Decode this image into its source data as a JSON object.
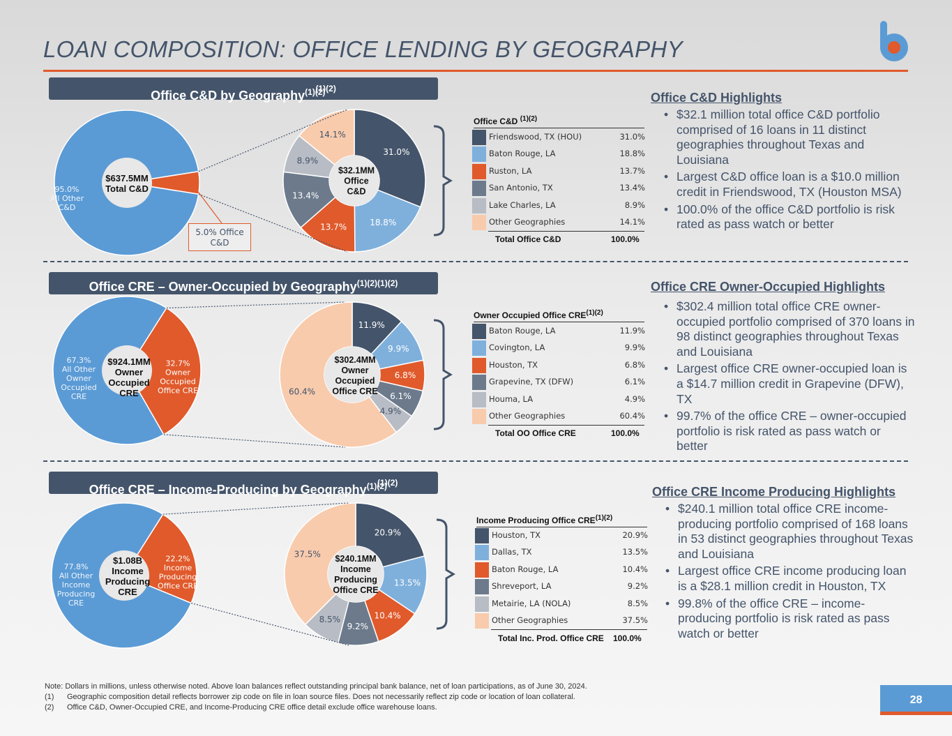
{
  "title": "LOAN COMPOSITION: OFFICE LENDING BY GEOGRAPHY",
  "page_number": "28",
  "colors": {
    "navy": "#44546a",
    "blue": "#5b9bd5",
    "orange": "#e05a2b",
    "slate": "#6c7a8c",
    "grey": "#b8bcc4",
    "peach": "#f8cbad",
    "lightblue": "#7fb0dc"
  },
  "notes": [
    "Note: Dollars in millions, unless otherwise noted. Above loan balances reflect outstanding principal bank balance, net of loan participations, as of June 30, 2024.",
    "(1)",
    "Geographic composition detail reflects borrower zip code on file in loan source files. Does not necessarily reflect zip code or location of loan collateral.",
    "(2)",
    "Office C&D, Owner-Occupied CRE, and Income-Producing CRE office detail exclude office warehouse loans."
  ],
  "sections": [
    {
      "banner": "Office C&D by Geography",
      "banner_sup": "(1)(2)",
      "banner_sup2": "(1)(2)",
      "left_center": [
        "$637.5MM",
        "Total C&D"
      ],
      "left_other_label": [
        "95.0%",
        "All Other",
        "C&D"
      ],
      "left_office_callout": [
        "5.0% Office",
        "C&D"
      ],
      "right_center": [
        "$32.1MM",
        "Office",
        "C&D"
      ],
      "table_title": "Office C&D",
      "table_sup": "(1)(2)",
      "total_label": "Total Office C&D",
      "total_value": "100.0%",
      "highlights_title": "Office C&D Highlights",
      "bullets": [
        "$32.1 million total office C&D portfolio comprised of 16 loans in 11 distinct geographies throughout Texas and Louisiana",
        "Largest C&D office loan is a $10.0 million credit in Friendswood, TX (Houston MSA)",
        "100.0% of the office C&D portfolio is risk rated as pass watch or better"
      ]
    },
    {
      "banner": "Office CRE – Owner-Occupied by Geography",
      "banner_sup": "(1)(2)",
      "banner_sup2": "(1)(2)",
      "left_center": [
        "$924.1MM",
        "Owner",
        "Occupied",
        "CRE"
      ],
      "left_other_label": [
        "67.3%",
        "All Other",
        "Owner",
        "Occupied",
        "CRE"
      ],
      "left_office_label": [
        "32.7%",
        "Owner",
        "Occupied",
        "Office CRE"
      ],
      "right_center": [
        "$302.4MM",
        "Owner",
        "Occupied",
        "Office CRE"
      ],
      "table_title": "Owner Occupied Office CRE",
      "table_sup": "(1)(2)",
      "total_label": "Total OO Office CRE",
      "total_value": "100.0%",
      "highlights_title": "Office CRE Owner-Occupied Highlights",
      "bullets": [
        "$302.4 million total office CRE owner-occupied portfolio comprised of 370 loans in 98 distinct geographies throughout Texas and Louisiana",
        "Largest office CRE owner-occupied loan is a $14.7 million credit in Grapevine (DFW), TX",
        "99.7% of the office CRE – owner-occupied portfolio is risk rated as pass watch or better"
      ]
    },
    {
      "banner": "Office CRE – Income-Producing by Geography",
      "banner_sup": "(1)(2)",
      "banner_sup2": "(1)(2)",
      "left_center": [
        "$1.08B",
        "Income",
        "Producing",
        "CRE"
      ],
      "left_other_label": [
        "77.8%",
        "All Other",
        "Income",
        "Producing",
        "CRE"
      ],
      "left_office_label": [
        "22.2%",
        "Income",
        "Producing",
        "Office CRE"
      ],
      "right_center": [
        "$240.1MM",
        "Income",
        "Producing",
        "Office CRE"
      ],
      "table_title": "Income Producing Office CRE",
      "table_sup": "(1)(2)",
      "total_label": "Total Inc. Prod. Office CRE",
      "total_value": "100.0%",
      "highlights_title": "Office CRE Income Producing Highlights",
      "bullets": [
        "$240.1 million total office CRE income-producing portfolio comprised of 168 loans in 53 distinct geographies throughout Texas and Louisiana",
        "Largest office CRE income producing loan is a $28.1 million credit in Houston, TX",
        "99.8% of the office CRE – income-producing portfolio is risk rated as pass watch or better"
      ]
    }
  ],
  "chart_data": [
    {
      "type": "pie",
      "title": "Office C&D by Geography",
      "categories": [
        "All Other C&D",
        "Office C&D"
      ],
      "values": [
        95.0,
        5.0
      ],
      "center_label": "$637.5MM Total C&D"
    },
    {
      "type": "pie",
      "title": "Office C&D",
      "categories": [
        "Friendswood, TX (HOU)",
        "Baton Rouge, LA",
        "Ruston, LA",
        "San Antonio, TX",
        "Lake Charles, LA",
        "Other Geographies"
      ],
      "values": [
        31.0,
        18.8,
        13.7,
        13.4,
        8.9,
        14.1
      ],
      "value_labels": [
        "31.0%",
        "18.8%",
        "13.7%",
        "13.4%",
        "8.9%",
        "14.1%"
      ],
      "center_label": "$32.1MM Office C&D"
    },
    {
      "type": "pie",
      "title": "Office CRE – Owner-Occupied by Geography",
      "categories": [
        "All Other Owner Occupied CRE",
        "Owner Occupied Office CRE"
      ],
      "values": [
        67.3,
        32.7
      ],
      "center_label": "$924.1MM Owner Occupied CRE"
    },
    {
      "type": "pie",
      "title": "Owner Occupied Office CRE",
      "categories": [
        "Baton Rouge, LA",
        "Covington, LA",
        "Houston, TX",
        "Grapevine, TX (DFW)",
        "Houma, LA",
        "Other Geographies"
      ],
      "values": [
        11.9,
        9.9,
        6.8,
        6.1,
        4.9,
        60.4
      ],
      "value_labels": [
        "11.9%",
        "9.9%",
        "6.8%",
        "6.1%",
        "4.9%",
        "60.4%"
      ],
      "center_label": "$302.4MM Owner Occupied Office CRE"
    },
    {
      "type": "pie",
      "title": "Office CRE – Income-Producing by Geography",
      "categories": [
        "All Other Income Producing CRE",
        "Income Producing Office CRE"
      ],
      "values": [
        77.8,
        22.2
      ],
      "center_label": "$1.08B Income Producing CRE"
    },
    {
      "type": "pie",
      "title": "Income Producing Office CRE",
      "categories": [
        "Houston, TX",
        "Dallas, TX",
        "Baton Rouge, LA",
        "Shreveport, LA",
        "Metairie, LA (NOLA)",
        "Other Geographies"
      ],
      "values": [
        20.9,
        13.5,
        10.4,
        9.2,
        8.5,
        37.5
      ],
      "value_labels": [
        "20.9%",
        "13.5%",
        "10.4%",
        "9.2%",
        "8.5%",
        "37.5%"
      ],
      "center_label": "$240.1MM Income Producing Office CRE"
    }
  ]
}
